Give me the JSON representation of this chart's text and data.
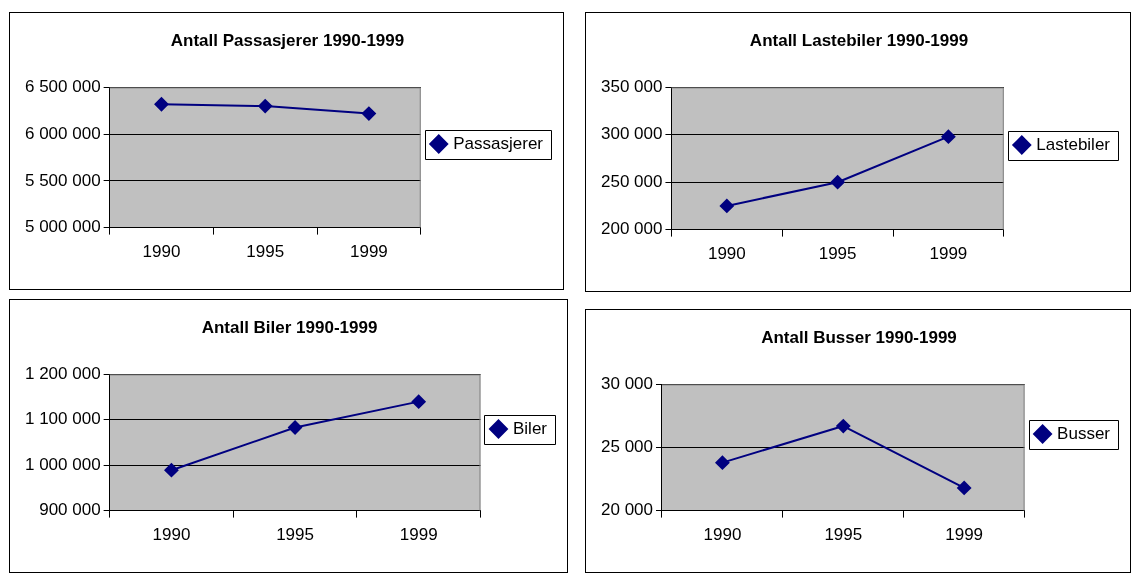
{
  "chart_data": [
    {
      "type": "line",
      "title": "Antall Passasjerer 1990-1999",
      "categories": [
        "1990",
        "1995",
        "1999"
      ],
      "series": [
        {
          "name": "Passasjerer",
          "color": "#000080",
          "values": [
            6320000,
            6300000,
            6220000
          ]
        }
      ],
      "ylim": [
        5000000,
        6500000
      ],
      "yticks": [
        {
          "value": 5000000,
          "label": "5 000 000"
        },
        {
          "value": 5500000,
          "label": "5 500 000"
        },
        {
          "value": 6000000,
          "label": "6 000 000"
        },
        {
          "value": 6500000,
          "label": "6 500 000"
        }
      ],
      "grid": "y",
      "legend": "right",
      "marker": "diamond"
    },
    {
      "type": "line",
      "title": "Antall Lastebiler 1990-1999",
      "categories": [
        "1990",
        "1995",
        "1999"
      ],
      "series": [
        {
          "name": "Lastebiler",
          "color": "#000080",
          "values": [
            225000,
            250000,
            298000
          ]
        }
      ],
      "ylim": [
        200000,
        350000
      ],
      "yticks": [
        {
          "value": 200000,
          "label": "200 000"
        },
        {
          "value": 250000,
          "label": "250 000"
        },
        {
          "value": 300000,
          "label": "300 000"
        },
        {
          "value": 350000,
          "label": "350 000"
        }
      ],
      "grid": "y",
      "legend": "right",
      "marker": "diamond"
    },
    {
      "type": "line",
      "title": "Antall Biler 1990-1999",
      "categories": [
        "1990",
        "1995",
        "1999"
      ],
      "series": [
        {
          "name": "Biler",
          "color": "#000080",
          "values": [
            989000,
            1083000,
            1140000
          ]
        }
      ],
      "ylim": [
        900000,
        1200000
      ],
      "yticks": [
        {
          "value": 900000,
          "label": "900 000"
        },
        {
          "value": 1000000,
          "label": "1 000 000"
        },
        {
          "value": 1100000,
          "label": "1 100 000"
        },
        {
          "value": 1200000,
          "label": "1 200 000"
        }
      ],
      "grid": "y",
      "legend": "right",
      "marker": "diamond"
    },
    {
      "type": "line",
      "title": "Antall Busser 1990-1999",
      "categories": [
        "1990",
        "1995",
        "1999"
      ],
      "series": [
        {
          "name": "Busser",
          "color": "#000080",
          "values": [
            23800,
            26700,
            21800
          ]
        }
      ],
      "ylim": [
        20000,
        30000
      ],
      "yticks": [
        {
          "value": 20000,
          "label": "20 000"
        },
        {
          "value": 25000,
          "label": "25 000"
        },
        {
          "value": 30000,
          "label": "30 000"
        }
      ],
      "grid": "y",
      "legend": "right",
      "marker": "diamond"
    }
  ]
}
